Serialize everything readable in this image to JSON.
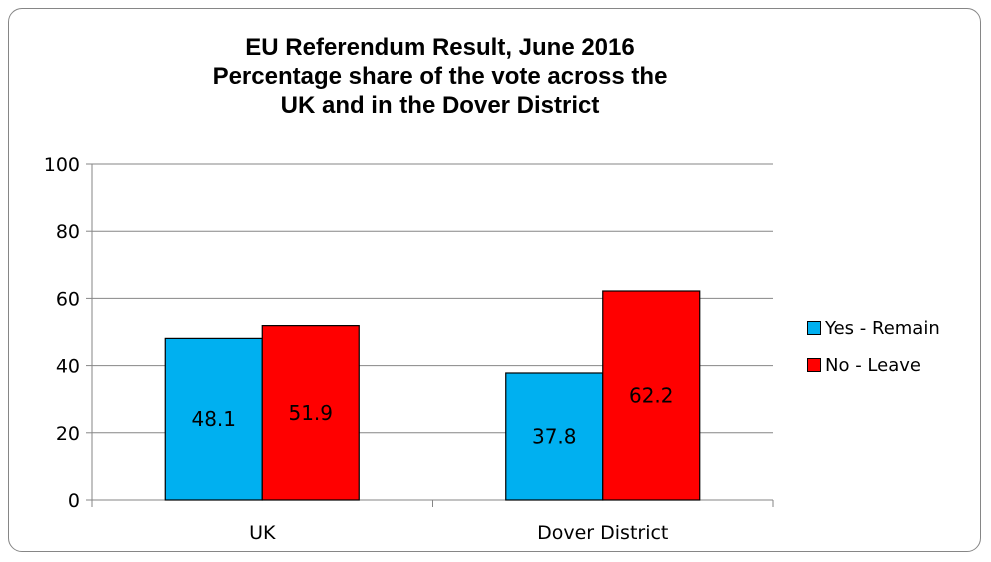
{
  "title_lines": [
    "EU Referendum Result, June 2016",
    "Percentage share of the vote across the",
    "UK and in the Dover District"
  ],
  "chart_data": {
    "type": "bar",
    "title": "EU Referendum Result, June 2016 Percentage share of the vote across the UK and in the Dover District",
    "categories": [
      "UK",
      "Dover District"
    ],
    "series": [
      {
        "name": "Yes - Remain",
        "values": [
          48.1,
          37.8
        ],
        "color": "#00B0F0"
      },
      {
        "name": "No - Leave",
        "values": [
          51.9,
          62.2
        ],
        "color": "#FF0000"
      }
    ],
    "data_labels": [
      [
        "48.1",
        "37.8"
      ],
      [
        "51.9",
        "62.2"
      ]
    ],
    "ylim": [
      0,
      100
    ],
    "yticks": [
      0,
      20,
      40,
      60,
      80,
      100
    ],
    "grid": true,
    "legend_position": "right"
  }
}
